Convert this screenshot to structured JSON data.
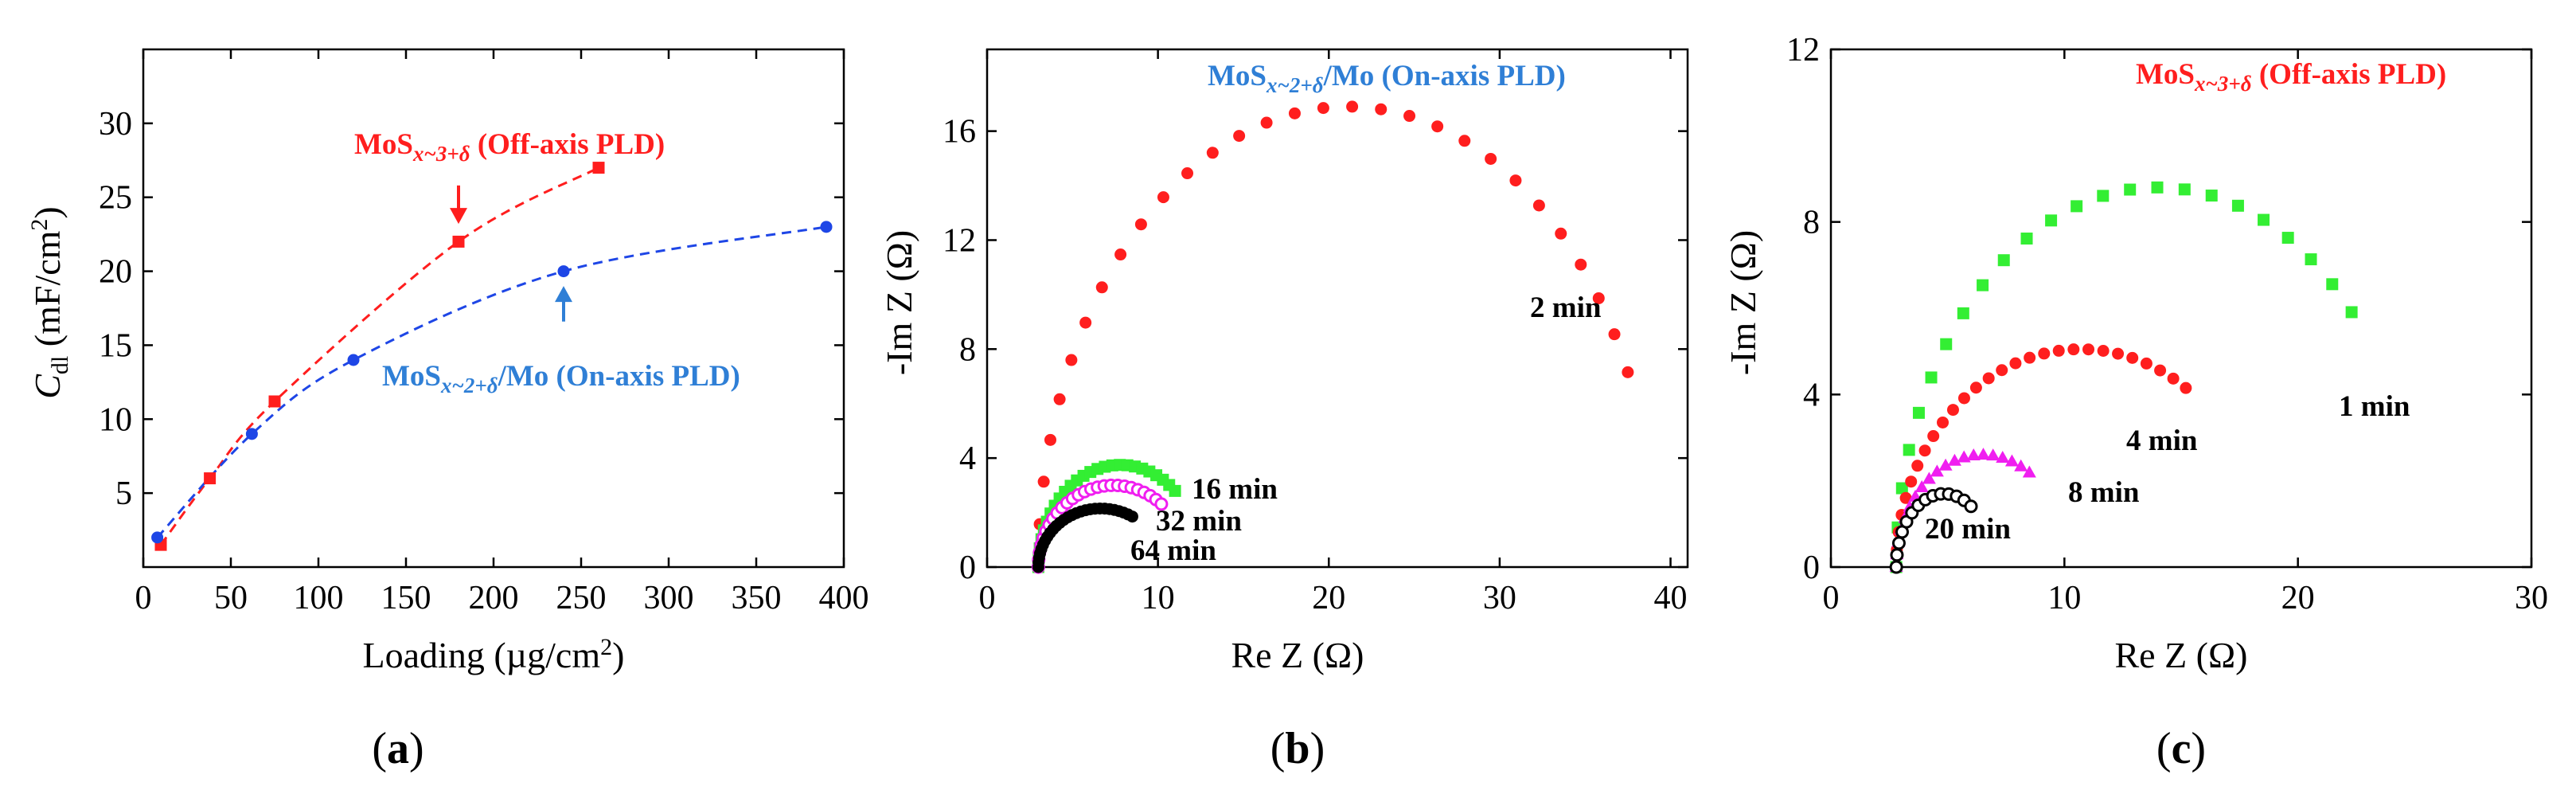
{
  "figure": {
    "panel_labels": [
      {
        "open": "(",
        "letter": "a",
        "close": ")"
      },
      {
        "open": "(",
        "letter": "b",
        "close": ")"
      },
      {
        "open": "(",
        "letter": "c",
        "close": ")"
      }
    ]
  },
  "colors": {
    "red": "#ff1e1e",
    "blue": "#1e46e6",
    "label_blue": "#2f7fd6",
    "green": "#33ee33",
    "magenta": "#f01ef0",
    "black": "#000000"
  },
  "chart_data": [
    {
      "type": "line",
      "ylabel": {
        "main": "C",
        "sub": "dl",
        "unit": " (mF/cm",
        "sup": "2",
        "close": ")"
      },
      "xlabel": {
        "main": "Loading (µg/cm",
        "sup": "2",
        "close": ")"
      },
      "xlim": [
        0,
        400
      ],
      "ylim": [
        0,
        35
      ],
      "xticks": [
        0,
        50,
        100,
        150,
        200,
        250,
        300,
        350,
        400
      ],
      "yticks": [
        5,
        10,
        15,
        20,
        25,
        30
      ],
      "series": [
        {
          "name": "MoSx~3+δ (Off-axis PLD)",
          "label": {
            "pre": "MoS",
            "sub": "x~3+δ",
            "post": " (Off-axis PLD)"
          },
          "color": "#ff1e1e",
          "marker": "square",
          "points": [
            [
              10,
              1.5
            ],
            [
              38,
              6
            ],
            [
              75,
              11.2
            ],
            [
              180,
              22
            ],
            [
              260,
              27
            ]
          ]
        },
        {
          "name": "MoSx~2+δ/Mo (On-axis PLD)",
          "label": {
            "pre": "MoS",
            "sub": "x~2+δ",
            "post": "/Mo (On-axis PLD)"
          },
          "color": "#1e46e6",
          "marker": "circle",
          "points": [
            [
              8,
              2
            ],
            [
              62,
              9
            ],
            [
              120,
              14
            ],
            [
              240,
              20
            ],
            [
              390,
              23
            ]
          ]
        }
      ],
      "arrows": [
        {
          "series": "MoSx~3+δ (Off-axis PLD)",
          "x": 180,
          "y_from": 25.8,
          "y_to": 23.2,
          "color": "#ff1e1e"
        },
        {
          "series": "MoSx~2+δ/Mo (On-axis PLD)",
          "x": 240,
          "y_from": 16.6,
          "y_to": 19.0,
          "color": "#2f7fd6"
        }
      ]
    },
    {
      "type": "scatter",
      "title": {
        "pre": "MoS",
        "sub": "x~2+δ",
        "post": "/Mo (On-axis PLD)"
      },
      "xlabel": "Re Z (Ω)",
      "ylabel": "-Im Z (Ω)",
      "xlim": [
        0,
        41
      ],
      "ylim": [
        0,
        19
      ],
      "xticks": [
        0,
        10,
        20,
        30,
        40
      ],
      "yticks": [
        0,
        4,
        8,
        12,
        16
      ],
      "series": [
        {
          "name": "2 min",
          "color": "#ff1e1e",
          "marker": "filled-circle",
          "r0": 3,
          "r1": 39.2,
          "peak": 16.9,
          "end": 37.5,
          "n": 30
        },
        {
          "name": "16 min",
          "color": "#33ee33",
          "marker": "filled-square",
          "r0": 3,
          "r1": 12.6,
          "peak": 3.75,
          "end": 11,
          "n": 26
        },
        {
          "name": "32 min",
          "color": "#f01ef0",
          "marker": "open-circle",
          "r0": 3,
          "r1": 11.8,
          "peak": 3.0,
          "end": 10.2,
          "n": 26
        },
        {
          "name": "64 min",
          "color": "#000000",
          "marker": "filled-circle",
          "r0": 3,
          "r1": 10.3,
          "peak": 2.15,
          "end": 8.5,
          "n": 28
        }
      ]
    },
    {
      "type": "scatter",
      "title": {
        "pre": "MoS",
        "sub": "x~3+δ",
        "post": " (Off-axis PLD)"
      },
      "xlabel": "Re Z (Ω)",
      "ylabel": "-Im Z (Ω)",
      "xlim": [
        0,
        30
      ],
      "ylim": [
        0,
        12
      ],
      "xticks": [
        0,
        10,
        20,
        30
      ],
      "yticks": [
        0,
        4,
        8,
        12
      ],
      "series": [
        {
          "name": "1 min",
          "color": "#33ee33",
          "marker": "filled-square",
          "r0": 2.8,
          "r1": 25.2,
          "peak": 8.8,
          "end": 22.3,
          "n": 24
        },
        {
          "name": "4 min",
          "color": "#ff1e1e",
          "marker": "filled-circle",
          "r0": 2.8,
          "r1": 18.6,
          "peak": 5.05,
          "end": 15.2,
          "n": 28
        },
        {
          "name": "8 min",
          "color": "#f01ef0",
          "marker": "filled-triangle",
          "r0": 2.8,
          "r1": 10.2,
          "peak": 2.6,
          "end": 8.5,
          "n": 20
        },
        {
          "name": "20 min",
          "color": "#000000",
          "marker": "open-circle",
          "r0": 2.8,
          "r1": 6.9,
          "peak": 1.7,
          "end": 6.0,
          "n": 14
        }
      ]
    }
  ]
}
